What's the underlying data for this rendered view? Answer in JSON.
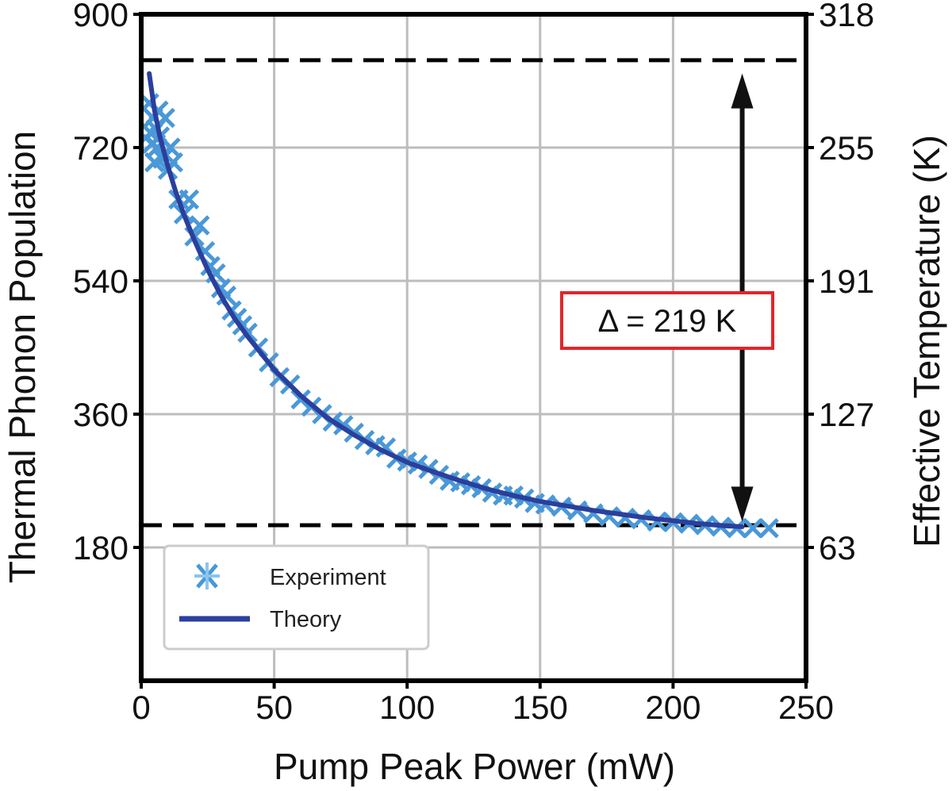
{
  "chart_data": {
    "type": "scatter",
    "xlabel": "Pump Peak Power (mW)",
    "ylabel": "Thermal Phonon Population",
    "y2label": "Effective Temperature (K)",
    "xlim": [
      0,
      250
    ],
    "ylim": [
      0,
      900
    ],
    "xticks": [
      0,
      50,
      100,
      150,
      200,
      250
    ],
    "xtick_labels": [
      "0",
      "50",
      "100",
      "150",
      "200",
      "250"
    ],
    "yticks": [
      180,
      360,
      540,
      720,
      900
    ],
    "ytick_labels": [
      "180",
      "360",
      "540",
      "720",
      "900"
    ],
    "y2ticks": [
      180,
      360,
      540,
      720,
      900
    ],
    "y2tick_labels": [
      "63",
      "127",
      "191",
      "255",
      "318"
    ],
    "grid": true,
    "legend_position": "bottom-left",
    "annotation": {
      "text": "Δ = 219 K",
      "arrow_x": 226,
      "arrow_y_top": 820,
      "arrow_y_bottom": 215,
      "dashed_levels": [
        838,
        210
      ]
    },
    "series": [
      {
        "name": "Experiment",
        "marker": "x",
        "color": "#4a98d8",
        "x": [
          3,
          3.5,
          4,
          4.5,
          5,
          5.5,
          6,
          6.5,
          7,
          8,
          9,
          10,
          11,
          12,
          14,
          16,
          18,
          20,
          22,
          24,
          26,
          28,
          30,
          32,
          34,
          36,
          38,
          40,
          44,
          48,
          52,
          56,
          60,
          64,
          68,
          72,
          76,
          80,
          84,
          88,
          92,
          96,
          100,
          104,
          108,
          112,
          116,
          120,
          124,
          128,
          132,
          136,
          140,
          144,
          148,
          152,
          158,
          164,
          170,
          176,
          182,
          188,
          194,
          200,
          206,
          212,
          218,
          224,
          230,
          236
        ],
        "y": [
          780,
          740,
          725,
          760,
          700,
          745,
          720,
          770,
          735,
          705,
          760,
          690,
          720,
          700,
          650,
          630,
          650,
          600,
          615,
          580,
          560,
          550,
          530,
          520,
          500,
          490,
          480,
          470,
          450,
          430,
          410,
          400,
          380,
          370,
          360,
          350,
          345,
          335,
          325,
          318,
          315,
          300,
          296,
          292,
          286,
          278,
          270,
          268,
          264,
          260,
          254,
          250,
          250,
          246,
          240,
          238,
          235,
          230,
          226,
          222,
          220,
          218,
          215,
          214,
          212,
          210,
          208,
          206,
          206,
          206
        ]
      },
      {
        "name": "Theory",
        "marker": "line",
        "color": "#2b3f9c",
        "x": [
          3,
          5,
          7,
          10,
          13,
          16,
          20,
          25,
          30,
          35,
          40,
          50,
          60,
          70,
          80,
          90,
          100,
          110,
          120,
          130,
          140,
          150,
          160,
          170,
          180,
          190,
          200,
          210,
          220,
          226
        ],
        "y": [
          820,
          770,
          735,
          695,
          660,
          630,
          595,
          555,
          520,
          490,
          465,
          420,
          385,
          355,
          332,
          312,
          295,
          282,
          270,
          259,
          250,
          242,
          236,
          230,
          225,
          220,
          216,
          212,
          209,
          208
        ]
      }
    ]
  },
  "legend": {
    "experiment_label": "Experiment",
    "theory_label": "Theory"
  }
}
